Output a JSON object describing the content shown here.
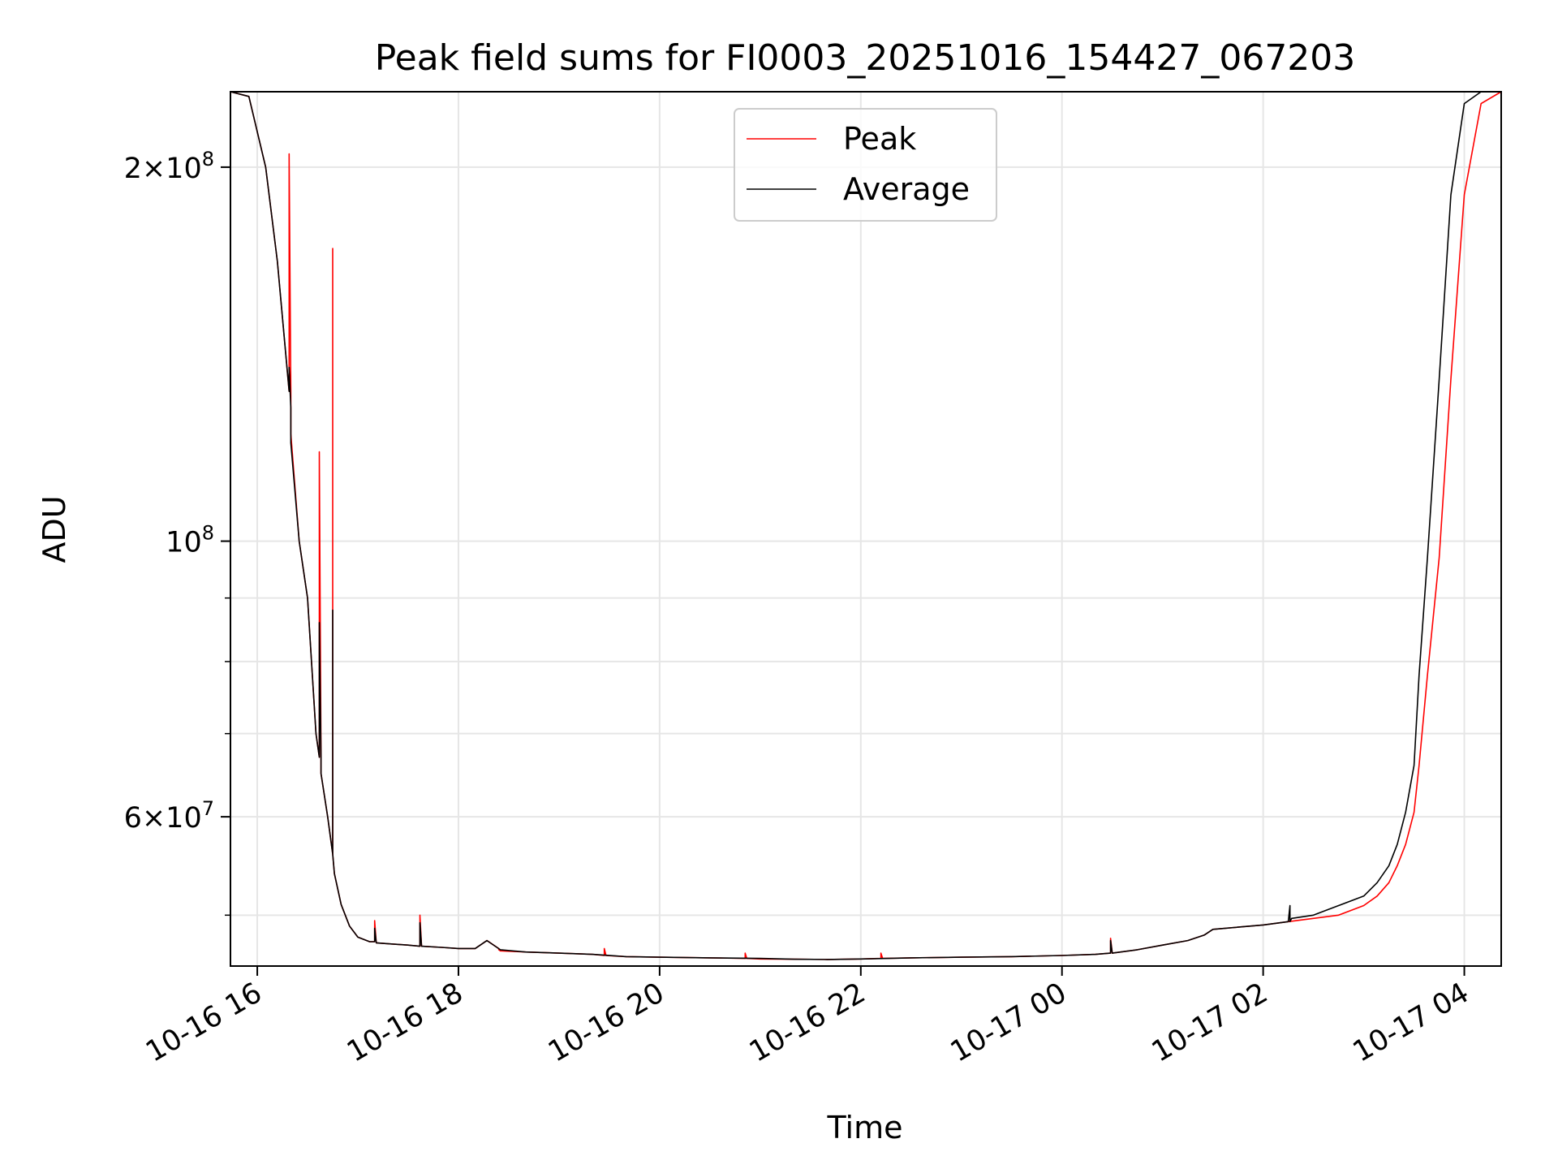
{
  "chart_data": {
    "type": "line",
    "title": "Peak field sums for FI0003_20251016_154427_067203",
    "xlabel": "Time",
    "ylabel": "ADU",
    "y_scale": "log",
    "ylim": [
      45500000,
      230000000
    ],
    "xlim": [
      "2025-10-16 15:44",
      "2025-10-17 04:22"
    ],
    "grid": true,
    "legend": {
      "placement": "top-center"
    },
    "x_ticks": [
      {
        "value": "2025-10-16 16:00",
        "label": "10-16 16"
      },
      {
        "value": "2025-10-16 18:00",
        "label": "10-16 18"
      },
      {
        "value": "2025-10-16 20:00",
        "label": "10-16 20"
      },
      {
        "value": "2025-10-16 22:00",
        "label": "10-16 22"
      },
      {
        "value": "2025-10-17 00:00",
        "label": "10-17 00"
      },
      {
        "value": "2025-10-17 02:00",
        "label": "10-17 02"
      },
      {
        "value": "2025-10-17 04:00",
        "label": "10-17 04"
      }
    ],
    "y_ticks": [
      {
        "value": 60000000,
        "base": "6",
        "exp": "7"
      },
      {
        "value": 100000000,
        "base": "10",
        "exp": "8"
      },
      {
        "value": 200000000,
        "base": "2",
        "exp": "8"
      }
    ],
    "y_minor_ticks": [
      50000000,
      70000000,
      80000000,
      90000000
    ],
    "series": [
      {
        "name": "Peak",
        "color": "#ff0000",
        "x": [
          "2025-10-16 15:44",
          "2025-10-16 15:55",
          "2025-10-16 16:05",
          "2025-10-16 16:12",
          "2025-10-16 16:19",
          "2025-10-16 16:19",
          "2025-10-16 16:20",
          "2025-10-16 16:20",
          "2025-10-16 16:25",
          "2025-10-16 16:30",
          "2025-10-16 16:35",
          "2025-10-16 16:37",
          "2025-10-16 16:37",
          "2025-10-16 16:38",
          "2025-10-16 16:38",
          "2025-10-16 16:42",
          "2025-10-16 16:45",
          "2025-10-16 16:45",
          "2025-10-16 16:45",
          "2025-10-16 16:46",
          "2025-10-16 16:50",
          "2025-10-16 16:55",
          "2025-10-16 17:00",
          "2025-10-16 17:07",
          "2025-10-16 17:10",
          "2025-10-16 17:10",
          "2025-10-16 17:11",
          "2025-10-16 17:20",
          "2025-10-16 17:30",
          "2025-10-16 17:37",
          "2025-10-16 17:37",
          "2025-10-16 17:38",
          "2025-10-16 17:50",
          "2025-10-16 18:00",
          "2025-10-16 18:10",
          "2025-10-16 18:17",
          "2025-10-16 18:24",
          "2025-10-16 18:24",
          "2025-10-16 18:25",
          "2025-10-16 18:40",
          "2025-10-16 19:00",
          "2025-10-16 19:20",
          "2025-10-16 19:27",
          "2025-10-16 19:27",
          "2025-10-16 19:28",
          "2025-10-16 19:40",
          "2025-10-16 20:00",
          "2025-10-16 20:30",
          "2025-10-16 20:51",
          "2025-10-16 20:51",
          "2025-10-16 20:52",
          "2025-10-16 21:00",
          "2025-10-16 21:20",
          "2025-10-16 21:40",
          "2025-10-16 22:00",
          "2025-10-16 22:12",
          "2025-10-16 22:12",
          "2025-10-16 22:13",
          "2025-10-16 22:30",
          "2025-10-16 23:00",
          "2025-10-16 23:30",
          "2025-10-17 00:00",
          "2025-10-17 00:20",
          "2025-10-17 00:29",
          "2025-10-17 00:29",
          "2025-10-17 00:30",
          "2025-10-17 00:45",
          "2025-10-17 01:00",
          "2025-10-17 01:15",
          "2025-10-17 01:25",
          "2025-10-17 01:30",
          "2025-10-17 01:45",
          "2025-10-17 02:00",
          "2025-10-17 02:15",
          "2025-10-17 02:30",
          "2025-10-17 02:45",
          "2025-10-17 03:00",
          "2025-10-17 03:08",
          "2025-10-17 03:15",
          "2025-10-17 03:20",
          "2025-10-17 03:25",
          "2025-10-17 03:30",
          "2025-10-17 03:33",
          "2025-10-17 03:38",
          "2025-10-17 03:45",
          "2025-10-17 03:52",
          "2025-10-17 04:00",
          "2025-10-17 04:10",
          "2025-10-17 04:22"
        ],
        "y": [
          230000000,
          228000000,
          200000000,
          168000000,
          132000000,
          205000000,
          132000000,
          122000000,
          100000000,
          90000000,
          70000000,
          67000000,
          118000000,
          67000000,
          65000000,
          60000000,
          56000000,
          172000000,
          56000000,
          54000000,
          51000000,
          49000000,
          48000000,
          47600000,
          47600000,
          49500000,
          47500000,
          47400000,
          47300000,
          47200000,
          50000000,
          47200000,
          47100000,
          47000000,
          47000000,
          47700000,
          47000000,
          46900000,
          46800000,
          46700000,
          46600000,
          46500000,
          46400000,
          47000000,
          46400000,
          46300000,
          46250000,
          46200000,
          46150000,
          46600000,
          46150000,
          46100000,
          46080000,
          46060000,
          46100000,
          46150000,
          46600000,
          46150000,
          46200000,
          46250000,
          46300000,
          46400000,
          46500000,
          46600000,
          47900000,
          46600000,
          46900000,
          47300000,
          47700000,
          48200000,
          48700000,
          48900000,
          49100000,
          49400000,
          49700000,
          50000000,
          50900000,
          51800000,
          53100000,
          54800000,
          57000000,
          60500000,
          66000000,
          78000000,
          97000000,
          135000000,
          190000000,
          225000000,
          230000000
        ]
      },
      {
        "name": "Average",
        "color": "#000000",
        "x": [
          "2025-10-16 15:44",
          "2025-10-16 15:55",
          "2025-10-16 16:05",
          "2025-10-16 16:12",
          "2025-10-16 16:19",
          "2025-10-16 16:19",
          "2025-10-16 16:20",
          "2025-10-16 16:20",
          "2025-10-16 16:25",
          "2025-10-16 16:30",
          "2025-10-16 16:35",
          "2025-10-16 16:37",
          "2025-10-16 16:37",
          "2025-10-16 16:38",
          "2025-10-16 16:38",
          "2025-10-16 16:42",
          "2025-10-16 16:45",
          "2025-10-16 16:45",
          "2025-10-16 16:45",
          "2025-10-16 16:46",
          "2025-10-16 16:50",
          "2025-10-16 16:55",
          "2025-10-16 17:00",
          "2025-10-16 17:07",
          "2025-10-16 17:10",
          "2025-10-16 17:10",
          "2025-10-16 17:11",
          "2025-10-16 17:20",
          "2025-10-16 17:30",
          "2025-10-16 17:37",
          "2025-10-16 17:37",
          "2025-10-16 17:38",
          "2025-10-16 17:50",
          "2025-10-16 18:00",
          "2025-10-16 18:10",
          "2025-10-16 18:17",
          "2025-10-16 18:25",
          "2025-10-16 18:40",
          "2025-10-16 19:00",
          "2025-10-16 19:20",
          "2025-10-16 19:40",
          "2025-10-16 20:00",
          "2025-10-16 20:30",
          "2025-10-16 21:00",
          "2025-10-16 21:20",
          "2025-10-16 21:40",
          "2025-10-16 22:00",
          "2025-10-16 22:30",
          "2025-10-16 23:00",
          "2025-10-16 23:30",
          "2025-10-17 00:00",
          "2025-10-17 00:20",
          "2025-10-17 00:29",
          "2025-10-17 00:29",
          "2025-10-17 00:30",
          "2025-10-17 00:45",
          "2025-10-17 01:00",
          "2025-10-17 01:15",
          "2025-10-17 01:25",
          "2025-10-17 01:30",
          "2025-10-17 01:45",
          "2025-10-17 02:00",
          "2025-10-17 02:15",
          "2025-10-17 02:16",
          "2025-10-17 02:16",
          "2025-10-17 02:17",
          "2025-10-17 02:30",
          "2025-10-17 02:45",
          "2025-10-17 03:00",
          "2025-10-17 03:08",
          "2025-10-17 03:15",
          "2025-10-17 03:20",
          "2025-10-17 03:25",
          "2025-10-17 03:30",
          "2025-10-17 03:33",
          "2025-10-17 03:38",
          "2025-10-17 03:45",
          "2025-10-17 03:52",
          "2025-10-17 04:00",
          "2025-10-17 04:10",
          "2025-10-17 04:22"
        ],
        "y": [
          230000000,
          228000000,
          200000000,
          168000000,
          132000000,
          138000000,
          128000000,
          120000000,
          100000000,
          90000000,
          70000000,
          67000000,
          86000000,
          67000000,
          65000000,
          60000000,
          56000000,
          88000000,
          56000000,
          54000000,
          51000000,
          49000000,
          48000000,
          47600000,
          47600000,
          48800000,
          47500000,
          47400000,
          47300000,
          47200000,
          49300000,
          47200000,
          47100000,
          47000000,
          47000000,
          47700000,
          46900000,
          46700000,
          46600000,
          46500000,
          46300000,
          46250000,
          46200000,
          46150000,
          46080000,
          46060000,
          46100000,
          46200000,
          46250000,
          46300000,
          46400000,
          46500000,
          46600000,
          47700000,
          46600000,
          46900000,
          47300000,
          47700000,
          48200000,
          48700000,
          48900000,
          49100000,
          49400000,
          50900000,
          49400000,
          49700000,
          50000000,
          50900000,
          51800000,
          53100000,
          54800000,
          57000000,
          60500000,
          66000000,
          78000000,
          97000000,
          135000000,
          190000000,
          225000000,
          230000000,
          230000000
        ]
      }
    ]
  }
}
